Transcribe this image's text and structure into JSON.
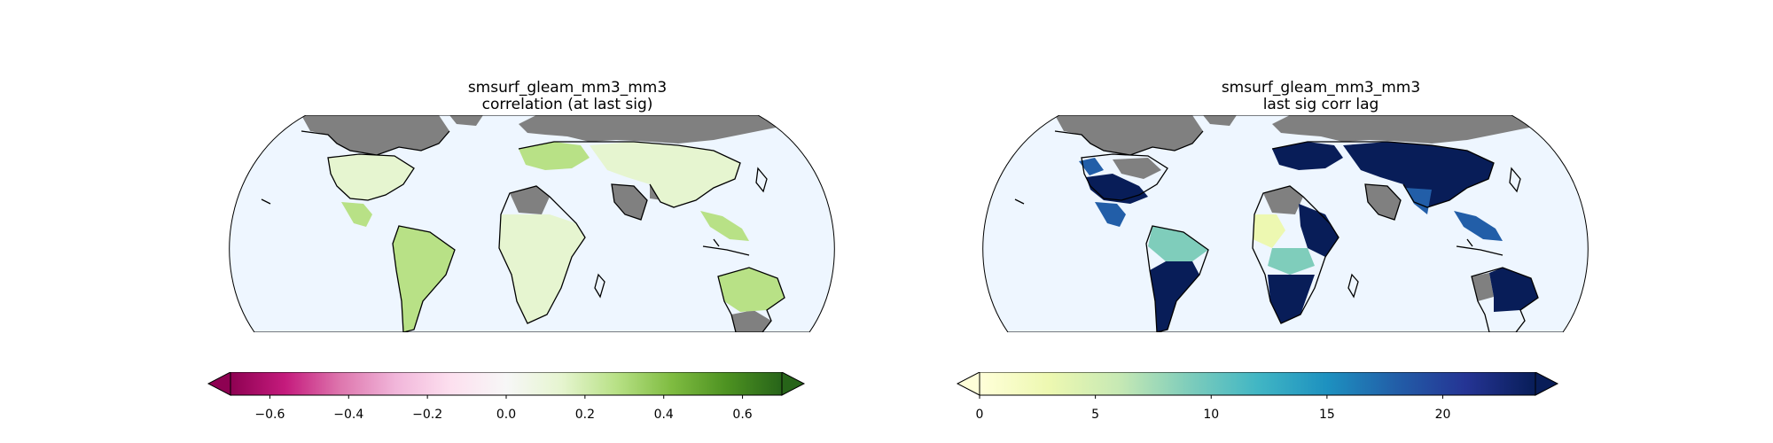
{
  "colors": {
    "ocean": "#eef6ff",
    "nodata_land": "#808080",
    "coast": "#000000",
    "piyg": [
      "#8e0152",
      "#c51b7d",
      "#de77ae",
      "#f1b6da",
      "#fde0ef",
      "#f7f7f7",
      "#e6f5d0",
      "#b8e186",
      "#7fbc41",
      "#4d9221",
      "#276419"
    ],
    "ylgnbu": [
      "#ffffd9",
      "#edf8b1",
      "#c7e9b4",
      "#7fcdbb",
      "#41b6c4",
      "#1d91c0",
      "#225ea8",
      "#253494",
      "#081d58"
    ]
  },
  "maps": [
    {
      "title_line1": "smsurf_gleam_mm3_mm3",
      "title_line2": "correlation (at last sig)",
      "colormap": "PiYG",
      "vmin": -0.7,
      "vmax": 0.7,
      "extend": "both",
      "ticks": [
        "−0.6",
        "−0.4",
        "−0.2",
        "0.0",
        "0.2",
        "0.4",
        "0.6"
      ],
      "tick_values": [
        -0.6,
        -0.4,
        -0.2,
        0.0,
        0.2,
        0.4,
        0.6
      ]
    },
    {
      "title_line1": "smsurf_gleam_mm3_mm3",
      "title_line2": "last sig corr lag",
      "colormap": "YlGnBu",
      "vmin": 0,
      "vmax": 24,
      "extend": "both",
      "ticks": [
        "0",
        "5",
        "10",
        "15",
        "20"
      ],
      "tick_values": [
        0,
        5,
        10,
        15,
        20
      ]
    }
  ]
}
